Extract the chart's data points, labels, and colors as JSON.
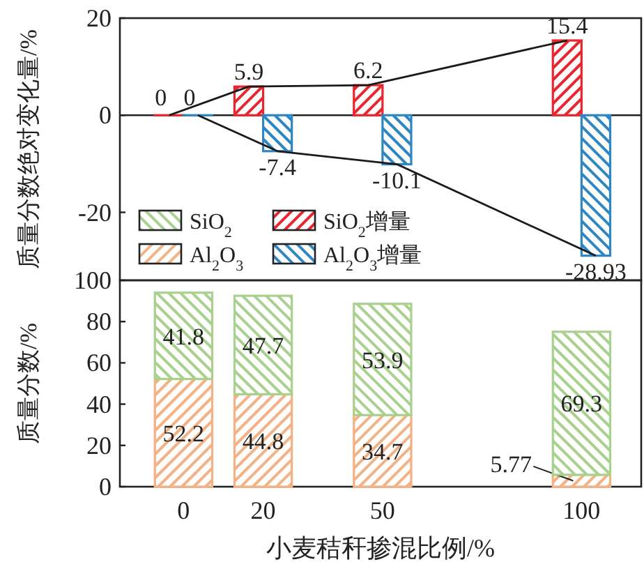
{
  "chart_data": [
    {
      "type": "bar",
      "ylabel": "质量分数绝对变化量/%",
      "x": [
        0,
        20,
        50,
        100
      ],
      "xlim": [
        -16,
        115
      ],
      "ylim": [
        -34,
        20
      ],
      "yticks": [
        -20,
        0,
        20
      ],
      "tick_labels": "y",
      "legend": "bottom left",
      "series": [
        {
          "name": "SiO$_{2}$增量",
          "color": "#e8262e",
          "values": [
            0,
            5.9,
            6.2,
            15.4
          ]
        },
        {
          "name": "Al$_{2}$O$_{3}$增量",
          "color": "#2f86c4",
          "values": [
            0,
            -7.4,
            -10.1,
            -28.93
          ]
        },
        {
          "type": "line",
          "color": "#1a1a1a",
          "x": [
            -3.6,
            16.4,
            46.4,
            96.4
          ],
          "values": [
            0,
            5.9,
            6.2,
            15.4
          ],
          "value_labels": [
            "0",
            "5.9",
            "6.2",
            "15.4"
          ]
        },
        {
          "type": "line",
          "color": "#1a1a1a",
          "x": [
            3.6,
            23.6,
            53.6,
            103.6
          ],
          "values": [
            0,
            -7.4,
            -10.1,
            -28.93
          ],
          "value_labels": [
            "0",
            "-7.4",
            "-10.1",
            "-28.93"
          ]
        }
      ]
    },
    {
      "type": "bar",
      "stacked": true,
      "xlabel": "小麦秸秆掺混比例/%",
      "ylabel": "质量分数/%",
      "x": [
        0,
        20,
        50,
        100
      ],
      "xlim": [
        -16,
        115
      ],
      "xticks": [
        0,
        20,
        50,
        100
      ],
      "ylim": [
        0,
        100
      ],
      "yticks": [
        0,
        20,
        40,
        60,
        80,
        100
      ],
      "data_labels": true,
      "legend": "top left",
      "series": [
        {
          "name": "Al$_{2}$O$_{3}$",
          "color": "#f4b183",
          "values": [
            52.2,
            44.8,
            34.7,
            5.77
          ]
        },
        {
          "name": "SiO$_{2}$",
          "color": "#a9d18e",
          "values": [
            41.8,
            47.7,
            53.9,
            69.3
          ]
        }
      ]
    }
  ]
}
